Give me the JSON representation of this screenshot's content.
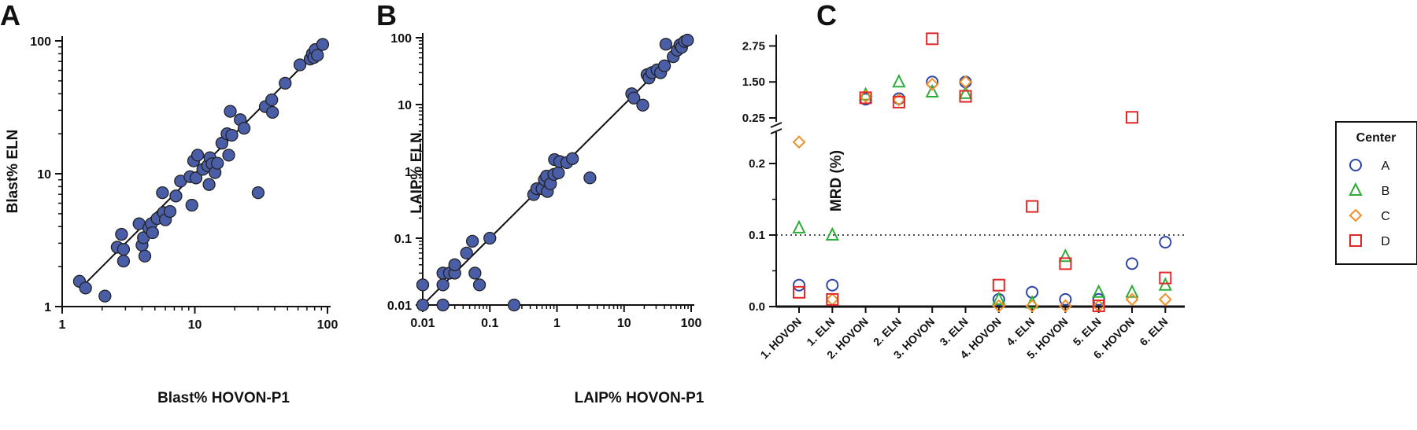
{
  "panels": [
    {
      "letter": "A"
    },
    {
      "letter": "B"
    },
    {
      "letter": "C"
    }
  ],
  "chart_data": [
    {
      "type": "scatter",
      "panel": "A",
      "xlabel": "Blast% HOVON-P1",
      "ylabel": "Blast% ELN",
      "x_scale": "log",
      "y_scale": "log",
      "xlim": [
        1,
        100
      ],
      "ylim": [
        1,
        100
      ],
      "x_ticks": [
        "1",
        "10",
        "100"
      ],
      "y_ticks": [
        "1",
        "10",
        "100"
      ],
      "marker_color": "#4a5ea8",
      "fit_line": {
        "from": [
          1.4,
          1.4
        ],
        "to": [
          92,
          92
        ]
      },
      "points": [
        [
          1.35,
          1.55
        ],
        [
          1.5,
          1.38
        ],
        [
          2.1,
          1.2
        ],
        [
          2.6,
          2.8
        ],
        [
          2.8,
          3.5
        ],
        [
          2.9,
          2.7
        ],
        [
          2.9,
          2.2
        ],
        [
          3.8,
          4.2
        ],
        [
          4.0,
          2.9
        ],
        [
          4.1,
          3.3
        ],
        [
          4.2,
          2.4
        ],
        [
          4.5,
          3.9
        ],
        [
          4.7,
          4.2
        ],
        [
          4.8,
          3.6
        ],
        [
          5.2,
          4.6
        ],
        [
          5.7,
          7.2
        ],
        [
          5.8,
          5.1
        ],
        [
          6.0,
          4.5
        ],
        [
          6.5,
          5.2
        ],
        [
          7.2,
          6.8
        ],
        [
          7.8,
          8.8
        ],
        [
          9.2,
          9.5
        ],
        [
          9.5,
          5.8
        ],
        [
          9.8,
          12.5
        ],
        [
          10.2,
          9.3
        ],
        [
          10.5,
          13.8
        ],
        [
          11.5,
          10.8
        ],
        [
          12.5,
          11.5
        ],
        [
          12.8,
          8.3
        ],
        [
          13.0,
          13.2
        ],
        [
          13.5,
          11.9
        ],
        [
          14.2,
          10.2
        ],
        [
          14.8,
          12.0
        ],
        [
          16.0,
          17.0
        ],
        [
          17.5,
          20.0
        ],
        [
          18.0,
          13.8
        ],
        [
          18.5,
          29.5
        ],
        [
          19.0,
          19.5
        ],
        [
          22.0,
          25.5
        ],
        [
          23.5,
          22.0
        ],
        [
          30.0,
          7.2
        ],
        [
          34.0,
          32.0
        ],
        [
          38.0,
          36.0
        ],
        [
          38.5,
          29.0
        ],
        [
          48.0,
          48.0
        ],
        [
          62.0,
          66.0
        ],
        [
          74.0,
          73.0
        ],
        [
          77.0,
          80.0
        ],
        [
          79.0,
          75.0
        ],
        [
          81.0,
          86.0
        ],
        [
          84.0,
          78.0
        ],
        [
          92.0,
          94.0
        ]
      ]
    },
    {
      "type": "scatter",
      "panel": "B",
      "xlabel": "LAIP% HOVON-P1",
      "ylabel": "LAIP% ELN",
      "x_scale": "log",
      "y_scale": "log",
      "xlim": [
        0.01,
        100
      ],
      "ylim": [
        0.01,
        100
      ],
      "x_ticks": [
        "0.01",
        "0.1",
        "1",
        "10",
        "100"
      ],
      "y_ticks": [
        "0.01",
        "0.1",
        "1",
        "10",
        "100"
      ],
      "marker_color": "#4a5ea8",
      "fit_line": {
        "from": [
          0.01,
          0.01
        ],
        "to": [
          92,
          92
        ]
      },
      "points": [
        [
          0.01,
          0.01
        ],
        [
          0.01,
          0.02
        ],
        [
          0.02,
          0.01
        ],
        [
          0.02,
          0.02
        ],
        [
          0.02,
          0.03
        ],
        [
          0.025,
          0.03
        ],
        [
          0.03,
          0.03
        ],
        [
          0.03,
          0.04
        ],
        [
          0.045,
          0.06
        ],
        [
          0.055,
          0.09
        ],
        [
          0.06,
          0.03
        ],
        [
          0.07,
          0.02
        ],
        [
          0.1,
          0.1
        ],
        [
          0.23,
          0.01
        ],
        [
          0.45,
          0.45
        ],
        [
          0.5,
          0.55
        ],
        [
          0.6,
          0.55
        ],
        [
          0.65,
          0.75
        ],
        [
          0.7,
          0.85
        ],
        [
          0.72,
          0.5
        ],
        [
          0.8,
          0.65
        ],
        [
          0.9,
          0.9
        ],
        [
          0.92,
          1.5
        ],
        [
          1.05,
          0.95
        ],
        [
          1.1,
          1.4
        ],
        [
          1.4,
          1.35
        ],
        [
          1.7,
          1.55
        ],
        [
          3.1,
          0.8
        ],
        [
          13.0,
          14.5
        ],
        [
          14.0,
          12.5
        ],
        [
          19.0,
          9.8
        ],
        [
          22.0,
          28.0
        ],
        [
          23.5,
          25.0
        ],
        [
          26.0,
          30.0
        ],
        [
          31.0,
          33.0
        ],
        [
          35.0,
          30.0
        ],
        [
          40.0,
          38.0
        ],
        [
          42.0,
          80.0
        ],
        [
          54.0,
          52.0
        ],
        [
          62.0,
          65.0
        ],
        [
          68.0,
          78.0
        ],
        [
          72.0,
          72.0
        ],
        [
          80.0,
          88.0
        ],
        [
          88.0,
          92.0
        ]
      ]
    },
    {
      "type": "scatter",
      "panel": "C",
      "ylabel": "MRD (%)",
      "y_scale": "broken",
      "y_lower_lim": [
        0,
        0.25
      ],
      "y_upper_lim": [
        0.25,
        3.2
      ],
      "y_ticks_lower": [
        0,
        0.1,
        0.2
      ],
      "y_ticks_lower_labels": [
        "0.0",
        "0.1",
        "0.2"
      ],
      "y_ticks_upper": [
        0.25,
        1.5,
        2.75
      ],
      "y_ticks_upper_labels": [
        "0.25",
        "1.50",
        "2.75"
      ],
      "threshold": 0.1,
      "categories": [
        "1. HOVON",
        "1. ELN",
        "2. HOVON",
        "2. ELN",
        "3. HOVON",
        "3. ELN",
        "4. HOVON",
        "4. ELN",
        "5. HOVON",
        "5. ELN",
        "6. HOVON",
        "6. ELN"
      ],
      "legend": {
        "title": "Center",
        "placement": "right"
      },
      "series": [
        {
          "name": "A",
          "marker": "circle",
          "color": "#2d46a8",
          "values": [
            0.03,
            0.03,
            0.9,
            0.92,
            1.5,
            1.5,
            0.01,
            0.02,
            0.01,
            0.01,
            0.06,
            0.09
          ]
        },
        {
          "name": "B",
          "marker": "triangle",
          "color": "#2cad3a",
          "values": [
            0.11,
            0.1,
            1.05,
            1.5,
            1.15,
            1.1,
            0.01,
            0.005,
            0.07,
            0.02,
            0.02,
            0.03
          ]
        },
        {
          "name": "C",
          "marker": "diamond",
          "color": "#f0902a",
          "values": [
            0.23,
            0.01,
            1.0,
            0.88,
            1.42,
            1.5,
            0.001,
            0.001,
            0.001,
            0.001,
            0.01,
            0.01
          ]
        },
        {
          "name": "D",
          "marker": "square",
          "color": "#e02828",
          "values": [
            0.02,
            0.01,
            0.95,
            0.8,
            3.0,
            1.0,
            0.03,
            0.14,
            0.06,
            0.001,
            0.27,
            0.04
          ]
        }
      ]
    }
  ]
}
